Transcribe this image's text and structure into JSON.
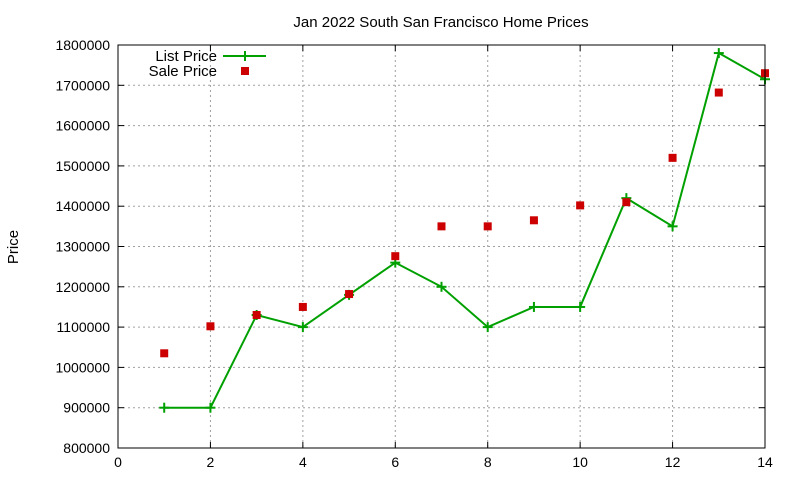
{
  "chart_data": {
    "type": "line",
    "title": "Jan 2022 South San Francisco Home Prices",
    "xlabel": "",
    "ylabel": "Price",
    "xlim": [
      0,
      14
    ],
    "ylim": [
      800000,
      1800000
    ],
    "x_ticks": [
      "0",
      "2",
      "4",
      "6",
      "8",
      "10",
      "12",
      "14"
    ],
    "y_ticks": [
      "800000",
      "900000",
      "1000000",
      "1100000",
      "1200000",
      "1300000",
      "1400000",
      "1500000",
      "1600000",
      "1700000",
      "1800000"
    ],
    "grid": true,
    "legend_position": "top-left",
    "series": [
      {
        "name": "List Price",
        "style": "line-with-plus-markers",
        "color": "#00a000",
        "x": [
          1,
          2,
          3,
          4,
          5,
          6,
          7,
          8,
          9,
          10,
          11,
          12,
          13,
          14
        ],
        "y": [
          900000,
          900000,
          1130000,
          1100000,
          1180000,
          1260000,
          1200000,
          1100000,
          1150000,
          1150000,
          1420000,
          1350000,
          1780000,
          1715000
        ]
      },
      {
        "name": "Sale Price",
        "style": "square-markers",
        "color": "#cc0000",
        "x": [
          1,
          2,
          3,
          4,
          5,
          6,
          7,
          8,
          9,
          10,
          11,
          12,
          13,
          14
        ],
        "y": [
          1035000,
          1102000,
          1130000,
          1150000,
          1182000,
          1276000,
          1350000,
          1350000,
          1365000,
          1402000,
          1410000,
          1520000,
          1682000,
          1730000
        ]
      }
    ]
  }
}
